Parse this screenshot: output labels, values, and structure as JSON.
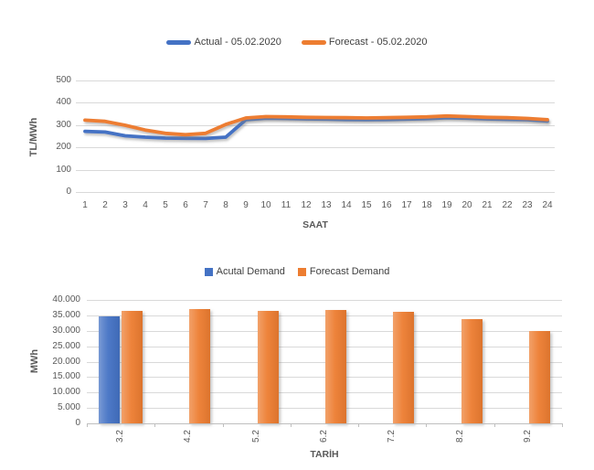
{
  "colors": {
    "actual_blue": "#4472C4",
    "forecast_orange": "#ED7D31",
    "gridline": "#D9D9D9",
    "axis_line": "#BFBFBF",
    "tick_text": "#595959",
    "legend_text": "#404040"
  },
  "chart_data": [
    {
      "type": "line",
      "title": "",
      "xlabel": "SAAT",
      "ylabel": "TL/MWh",
      "ylim": [
        0,
        500
      ],
      "yticks": [
        0,
        100,
        200,
        300,
        400,
        500
      ],
      "ytick_labels": [
        "0",
        "100",
        "200",
        "300",
        "400",
        "500"
      ],
      "grid": true,
      "legend_position": "top",
      "x": [
        1,
        2,
        3,
        4,
        5,
        6,
        7,
        8,
        9,
        10,
        11,
        12,
        13,
        14,
        15,
        16,
        17,
        18,
        19,
        20,
        21,
        22,
        23,
        24
      ],
      "series": [
        {
          "name": "Actual - 05.02.2020",
          "color": "#4472C4",
          "values": [
            272,
            269,
            252,
            246,
            242,
            241,
            240,
            246,
            324,
            331,
            330,
            328,
            327,
            325,
            324,
            325,
            327,
            329,
            333,
            331,
            328,
            326,
            324,
            318
          ]
        },
        {
          "name": "Forecast - 05.02.2020",
          "color": "#ED7D31",
          "values": [
            322,
            317,
            299,
            278,
            263,
            257,
            263,
            303,
            332,
            338,
            337,
            335,
            334,
            333,
            332,
            333,
            335,
            337,
            341,
            338,
            335,
            333,
            330,
            324
          ]
        }
      ]
    },
    {
      "type": "bar",
      "title": "",
      "xlabel": "TARİH",
      "ylabel": "MWh",
      "ylim": [
        0,
        40000
      ],
      "yticks": [
        0,
        5000,
        10000,
        15000,
        20000,
        25000,
        30000,
        35000,
        40000
      ],
      "ytick_labels": [
        "0",
        "5.000",
        "10.000",
        "15.000",
        "20.000",
        "25.000",
        "30.000",
        "35.000",
        "40.000"
      ],
      "grid": true,
      "legend_position": "top",
      "categories": [
        "3.2",
        "4.2",
        "5.2",
        "6.2",
        "7.2",
        "8.2",
        "9.2"
      ],
      "series": [
        {
          "name": "Acutal Demand",
          "color": "#4472C4",
          "values": [
            34800,
            null,
            null,
            null,
            null,
            null,
            null
          ]
        },
        {
          "name": "Forecast Demand",
          "color": "#ED7D31",
          "values": [
            36400,
            37000,
            36400,
            36700,
            36300,
            33800,
            30000
          ]
        }
      ]
    }
  ]
}
